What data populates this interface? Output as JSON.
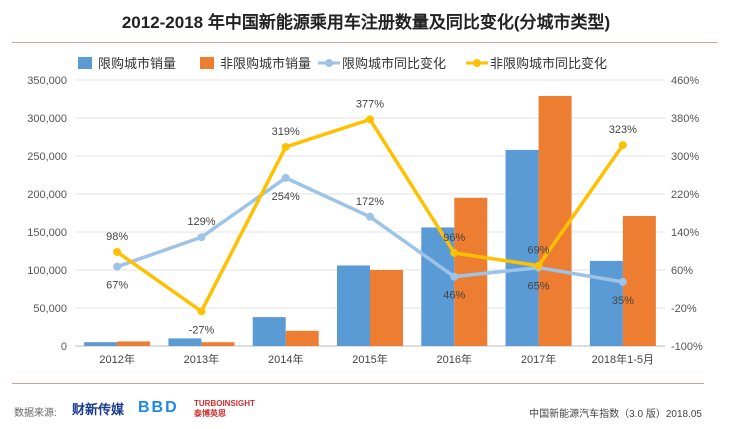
{
  "chart_data": {
    "type": "bar+line",
    "title": "2012-2018 年中国新能源乘用车注册数量及同比变化(分城市类型)",
    "categories": [
      "2012年",
      "2013年",
      "2014年",
      "2015年",
      "2016年",
      "2017年",
      "2018年1-5月"
    ],
    "series": [
      {
        "name": "限购城市销量",
        "type": "bar",
        "axis": "left",
        "color": "#5b9bd5",
        "values": [
          5000,
          10000,
          38000,
          106000,
          156000,
          258000,
          112000
        ]
      },
      {
        "name": "非限购城市销量",
        "type": "bar",
        "axis": "left",
        "color": "#ed7d31",
        "values": [
          6000,
          5000,
          20000,
          100000,
          195000,
          329000,
          171000
        ]
      },
      {
        "name": "限购城市同比变化",
        "type": "line",
        "axis": "right",
        "color": "#9dc3e6",
        "values": [
          67,
          129,
          254,
          172,
          46,
          65,
          35
        ],
        "labels": [
          "67%",
          "129%",
          "254%",
          "172%",
          "46%",
          "65%",
          "35%"
        ]
      },
      {
        "name": "非限购城市同比变化",
        "type": "line",
        "axis": "right",
        "color": "#ffc000",
        "values": [
          98,
          -27,
          319,
          377,
          96,
          69,
          323
        ],
        "labels": [
          "98%",
          "-27%",
          "319%",
          "377%",
          "96%",
          "69%",
          "323%"
        ]
      }
    ],
    "left_axis": {
      "ylim": [
        0,
        350000
      ],
      "ticks": [
        "0",
        "50,000",
        "100,000",
        "150,000",
        "200,000",
        "250,000",
        "300,000",
        "350,000"
      ]
    },
    "right_axis": {
      "ylim": [
        -100,
        460
      ],
      "ticks": [
        "-100%",
        "-20%",
        "60%",
        "140%",
        "220%",
        "300%",
        "380%",
        "460%"
      ]
    },
    "grid": true,
    "legend": "top"
  },
  "footer": {
    "source_label": "数据来源:",
    "logos": [
      "财新传媒",
      "BBD",
      "TURBOINSIGHT 泰博英思"
    ],
    "right": "中国新能源汽车指数（3.0 版）2018.05"
  }
}
